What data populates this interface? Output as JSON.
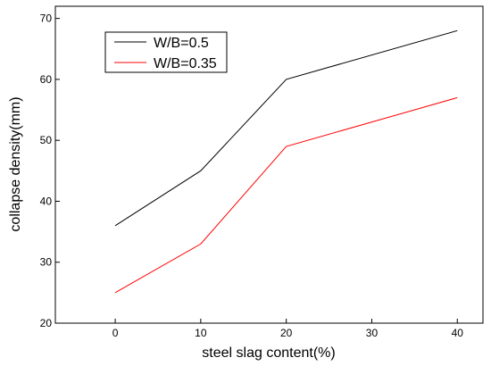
{
  "chart_data": {
    "type": "line",
    "title": "",
    "xlabel": "steel slag content(%)",
    "ylabel": "collapse density(mm)",
    "x": [
      0,
      10,
      20,
      40
    ],
    "xlim": [
      -7,
      43
    ],
    "ylim": [
      20,
      72
    ],
    "xticks": [
      "0",
      "10",
      "20",
      "30",
      "40"
    ],
    "yticks": [
      "20",
      "30",
      "40",
      "50",
      "60",
      "70"
    ],
    "grid": false,
    "legend_position": "top-left",
    "series": [
      {
        "name": "W/B=0.5",
        "color": "#000000",
        "values": [
          36,
          45,
          60,
          68
        ]
      },
      {
        "name": "W/B=0.35",
        "color": "#ff0000",
        "values": [
          25,
          33,
          49,
          57
        ]
      }
    ]
  }
}
